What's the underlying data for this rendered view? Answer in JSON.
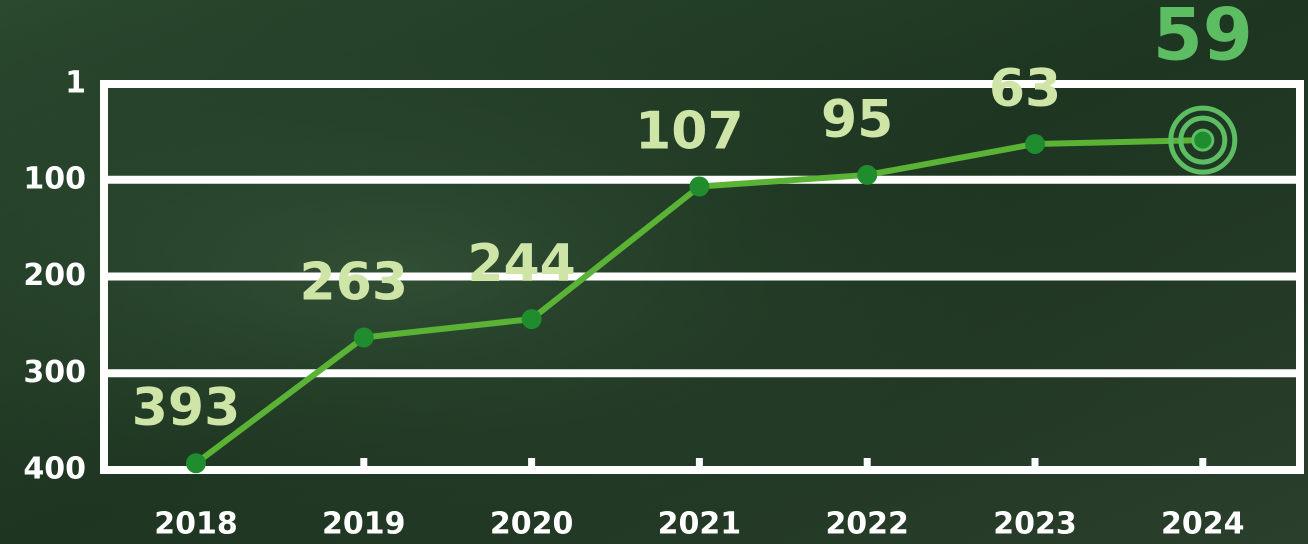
{
  "chart_data": {
    "type": "line",
    "categories": [
      "2018",
      "2019",
      "2020",
      "2021",
      "2022",
      "2023",
      "2024"
    ],
    "series": [
      {
        "values": [
          393,
          263,
          244,
          107,
          95,
          63,
          59
        ],
        "color": "#5bb336"
      }
    ],
    "marker_color": "#1f8c2e",
    "label_color": "#cfe5a8",
    "highlight_color": "#5cbd62",
    "ylim": [
      1,
      400
    ],
    "y_reversed": true,
    "yticks": [
      1,
      100,
      200,
      300,
      400
    ],
    "grid": true
  }
}
